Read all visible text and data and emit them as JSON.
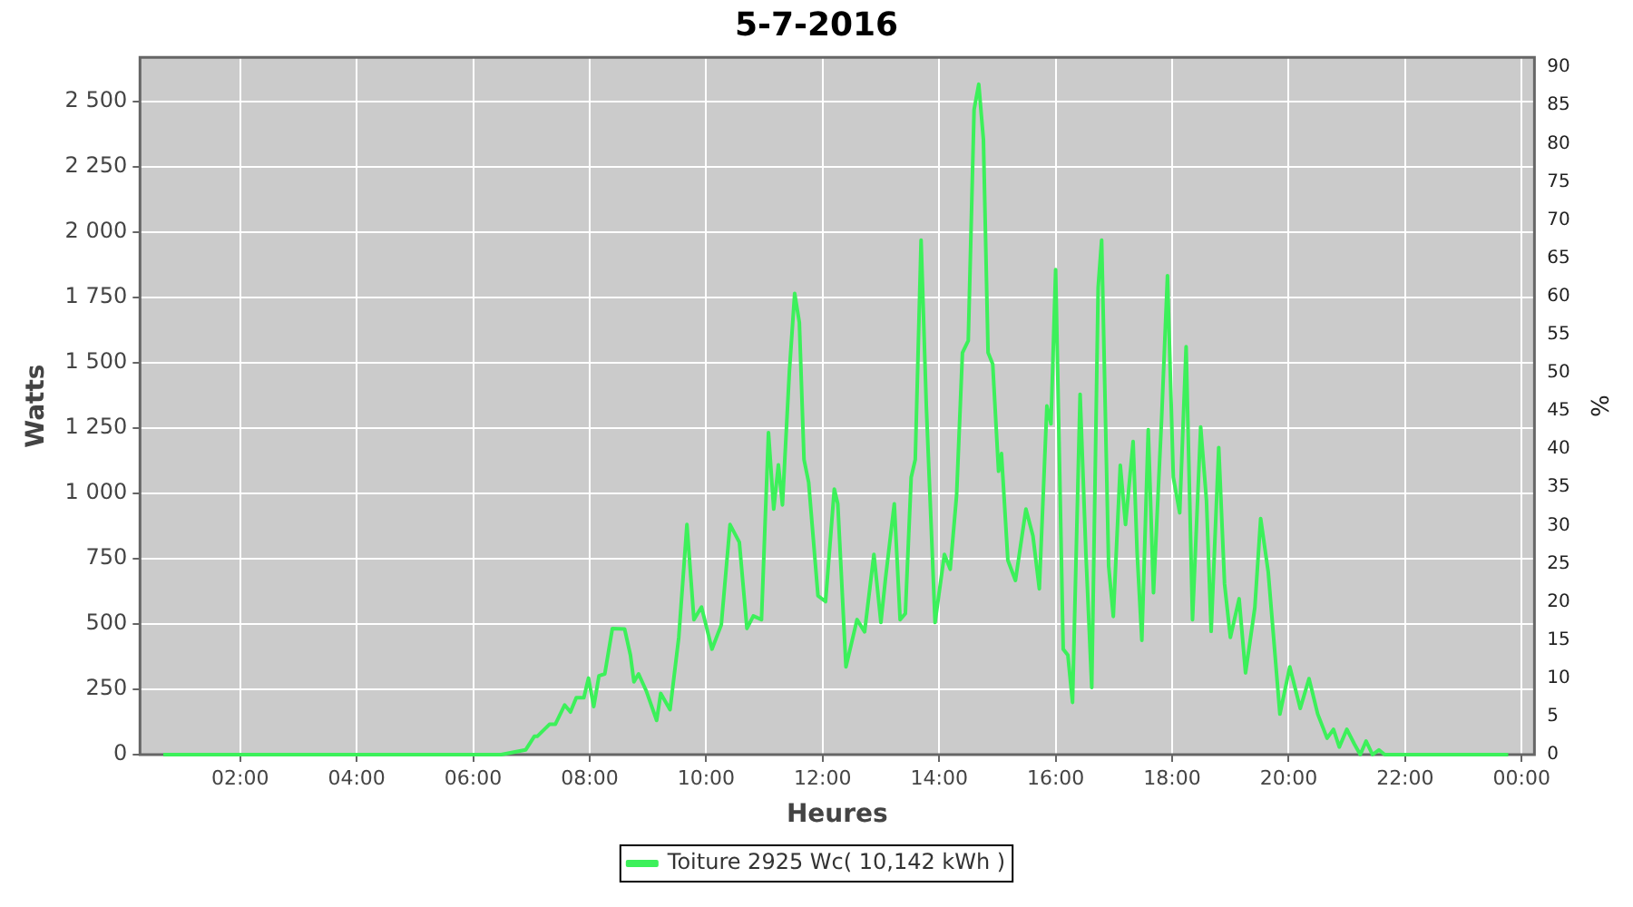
{
  "chart_data": {
    "type": "line",
    "title": "5-7-2016",
    "xlabel": "Heures",
    "ylabel": "Watts",
    "y2label": "%",
    "series": [
      {
        "name": "Toiture 2925 Wc( 10,142 kWh )",
        "color": "#3cf05a",
        "x": [
          0.68,
          6.48,
          6.9,
          7.05,
          7.1,
          7.31,
          7.41,
          7.57,
          7.67,
          7.77,
          7.9,
          7.98,
          8.07,
          8.16,
          8.26,
          8.39,
          8.6,
          8.7,
          8.76,
          8.84,
          8.97,
          9.15,
          9.22,
          9.38,
          9.53,
          9.67,
          9.79,
          9.92,
          10.1,
          10.26,
          10.41,
          10.57,
          10.7,
          10.81,
          10.95,
          11.07,
          11.16,
          11.24,
          11.31,
          11.43,
          11.52,
          11.6,
          11.68,
          11.76,
          11.92,
          12.05,
          12.2,
          12.26,
          12.4,
          12.59,
          12.72,
          12.88,
          13.0,
          13.08,
          13.23,
          13.33,
          13.42,
          13.52,
          13.59,
          13.69,
          13.78,
          13.93,
          14.09,
          14.19,
          14.3,
          14.4,
          14.5,
          14.6,
          14.68,
          14.76,
          14.84,
          14.92,
          15.02,
          15.07,
          15.18,
          15.31,
          15.49,
          15.61,
          15.72,
          15.85,
          15.92,
          16.0,
          16.13,
          16.21,
          16.29,
          16.42,
          16.52,
          16.62,
          16.73,
          16.79,
          16.91,
          16.99,
          17.11,
          17.2,
          17.33,
          17.4,
          17.48,
          17.59,
          17.68,
          17.82,
          17.92,
          18.02,
          18.13,
          18.24,
          18.35,
          18.49,
          18.59,
          18.67,
          18.8,
          18.9,
          19.0,
          19.15,
          19.26,
          19.42,
          19.52,
          19.65,
          19.85,
          20.02,
          20.2,
          20.35,
          20.5,
          20.66,
          20.77,
          20.87,
          21.0,
          21.13,
          21.23,
          21.33,
          21.44,
          21.55,
          21.65,
          23.77
        ],
        "values": [
          0,
          0,
          18,
          70,
          70,
          116,
          116,
          190,
          163,
          218,
          218,
          293,
          184,
          302,
          309,
          483,
          481,
          381,
          279,
          309,
          245,
          131,
          234,
          172,
          449,
          881,
          517,
          565,
          404,
          497,
          881,
          813,
          483,
          531,
          517,
          1233,
          940,
          1110,
          956,
          1471,
          1766,
          1655,
          1130,
          1042,
          608,
          586,
          1017,
          960,
          336,
          517,
          470,
          767,
          506,
          676,
          960,
          517,
          540,
          1062,
          1130,
          1970,
          1335,
          506,
          767,
          710,
          994,
          1539,
          1585,
          2470,
          2567,
          2356,
          1539,
          1495,
          1085,
          1153,
          744,
          667,
          940,
          838,
          635,
          1335,
          1267,
          1857,
          404,
          381,
          200,
          1380,
          769,
          257,
          1789,
          1970,
          722,
          529,
          1108,
          881,
          1199,
          769,
          438,
          1244,
          620,
          1290,
          1834,
          1062,
          926,
          1562,
          517,
          1255,
          972,
          472,
          1176,
          654,
          449,
          597,
          313,
          563,
          904,
          699,
          155,
          336,
          177,
          291,
          155,
          63,
          97,
          29,
          97,
          40,
          0,
          52,
          0,
          18,
          0,
          0
        ]
      }
    ],
    "xlim": [
      0.28,
      24.22
    ],
    "xticks": [
      {
        "value": 2,
        "label": "02:00"
      },
      {
        "value": 4,
        "label": "04:00"
      },
      {
        "value": 6,
        "label": "06:00"
      },
      {
        "value": 8,
        "label": "08:00"
      },
      {
        "value": 10,
        "label": "10:00"
      },
      {
        "value": 12,
        "label": "12:00"
      },
      {
        "value": 14,
        "label": "14:00"
      },
      {
        "value": 16,
        "label": "16:00"
      },
      {
        "value": 18,
        "label": "18:00"
      },
      {
        "value": 20,
        "label": "20:00"
      },
      {
        "value": 22,
        "label": "22:00"
      },
      {
        "value": 24,
        "label": "00:00"
      }
    ],
    "ylim": [
      0,
      2670
    ],
    "yticks": [
      0,
      250,
      500,
      750,
      {
        "value": 1000,
        "label": "1 000"
      },
      {
        "value": 1250,
        "label": "1 250"
      },
      {
        "value": 1500,
        "label": "1 500"
      },
      {
        "value": 1750,
        "label": "1 750"
      },
      {
        "value": 2000,
        "label": "2 000"
      },
      {
        "value": 2250,
        "label": "2 250"
      },
      {
        "value": 2500,
        "label": "2 500"
      }
    ],
    "y2lim": [
      0,
      91.3
    ],
    "y2ticks": [
      0,
      5,
      10,
      15,
      20,
      25,
      30,
      35,
      40,
      45,
      50,
      55,
      60,
      65,
      70,
      75,
      80,
      85,
      90
    ],
    "grid": true,
    "legend": "bottom",
    "marker": "none",
    "line_style": "solid"
  }
}
